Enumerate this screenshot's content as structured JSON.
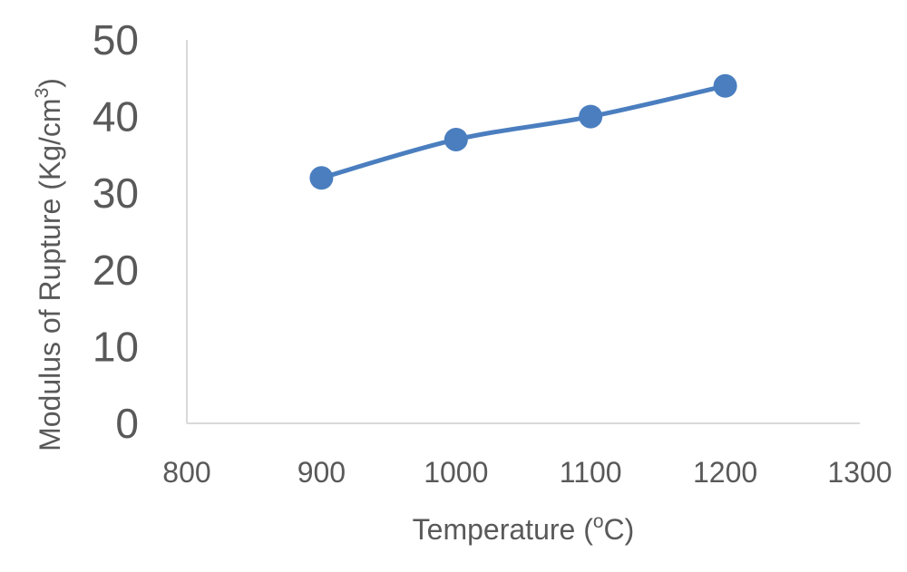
{
  "chart_data": {
    "type": "line",
    "title": "",
    "xlabel": "Temperature (",
    "xlabel_sup": "o",
    "xlabel_end": "C)",
    "ylabel": "Modulus of Rupture (Kg/cm",
    "ylabel_sup": "3",
    "ylabel_end": ")",
    "xlim": [
      800,
      1300
    ],
    "ylim": [
      0,
      50
    ],
    "xticks": [
      800,
      900,
      1000,
      1100,
      1200,
      1300
    ],
    "yticks": [
      0,
      10,
      20,
      30,
      40,
      50
    ],
    "grid": false,
    "legend": "none",
    "line_color": "#4a7ebf",
    "series": [
      {
        "x": [
          900,
          1000,
          1100,
          1200
        ],
        "y": [
          32,
          37,
          40,
          44
        ]
      }
    ]
  }
}
